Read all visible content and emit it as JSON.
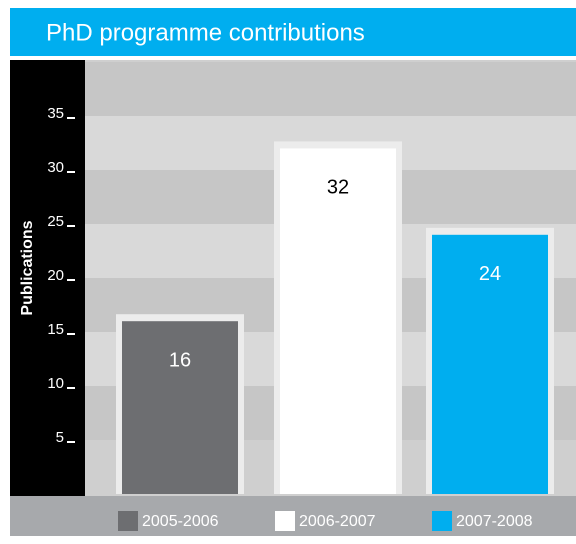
{
  "chart_data": {
    "type": "bar",
    "title": "PhD programme contributions",
    "y_label": "Publications",
    "categories": [
      "2005-2006",
      "2006-2007",
      "2007-2008"
    ],
    "values": [
      16,
      32,
      24
    ],
    "colors": [
      "#6d6e71",
      "#ffffff",
      "#00aeef"
    ],
    "ylim": [
      0,
      40
    ],
    "yticks": [
      5,
      10,
      15,
      20,
      25,
      30,
      35
    ],
    "grid": true
  }
}
